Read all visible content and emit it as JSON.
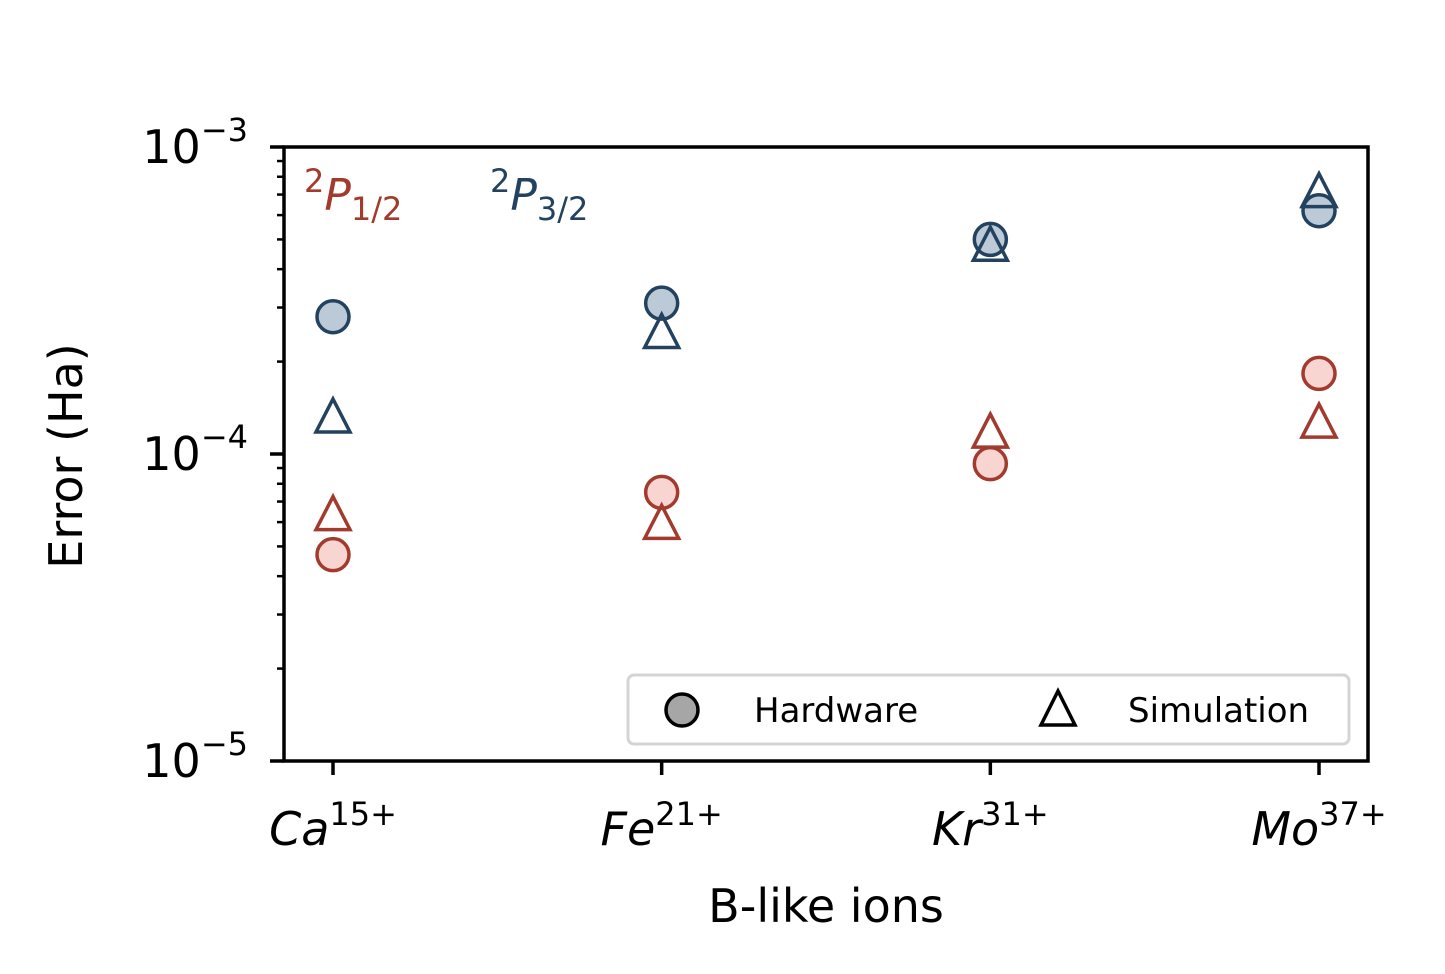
{
  "chart_data": {
    "type": "scatter",
    "xlabel": "B-like ions",
    "ylabel": "Error (Ha)",
    "yscale": "log",
    "ylim": [
      1e-05,
      0.001
    ],
    "categories": [
      {
        "base": "Ca",
        "sup": "15+"
      },
      {
        "base": "Fe",
        "sup": "21+"
      },
      {
        "base": "Kr",
        "sup": "31+"
      },
      {
        "base": "Mo",
        "sup": "37+"
      }
    ],
    "yticks": [
      {
        "base": "10",
        "exp": "−3",
        "value": 0.001
      },
      {
        "base": "10",
        "exp": "−4",
        "value": 0.0001
      },
      {
        "base": "10",
        "exp": "−5",
        "value": 1e-05
      }
    ],
    "state_labels": [
      {
        "pre": "2",
        "letter": "P",
        "sub": "1/2",
        "color": "#a23b2e"
      },
      {
        "pre": "2",
        "letter": "P",
        "sub": "3/2",
        "color": "#23425f"
      }
    ],
    "series": [
      {
        "state": "2P1/2",
        "kind": "Hardware",
        "marker": "circle",
        "edge": "#a23b2e",
        "fill": "#f8d5d0",
        "values": [
          4.7e-05,
          7.5e-05,
          9.3e-05,
          0.000183
        ]
      },
      {
        "state": "2P1/2",
        "kind": "Simulation",
        "marker": "triangle",
        "edge": "#a23b2e",
        "fill": "none",
        "values": [
          6.3e-05,
          5.9e-05,
          0.000117,
          0.000126
        ]
      },
      {
        "state": "2P3/2",
        "kind": "Hardware",
        "marker": "circle",
        "edge": "#23425f",
        "fill": "#bccad8",
        "values": [
          0.00028,
          0.00031,
          0.0005,
          0.00062
        ]
      },
      {
        "state": "2P3/2",
        "kind": "Simulation",
        "marker": "triangle",
        "edge": "#23425f",
        "fill": "none",
        "values": [
          0.000131,
          0.000247,
          0.000475,
          0.00071
        ]
      }
    ],
    "legend": {
      "placement": "lower-right",
      "entries": [
        {
          "label": "Hardware",
          "marker": "circle"
        },
        {
          "label": "Simulation",
          "marker": "triangle"
        }
      ]
    },
    "grid": false
  }
}
